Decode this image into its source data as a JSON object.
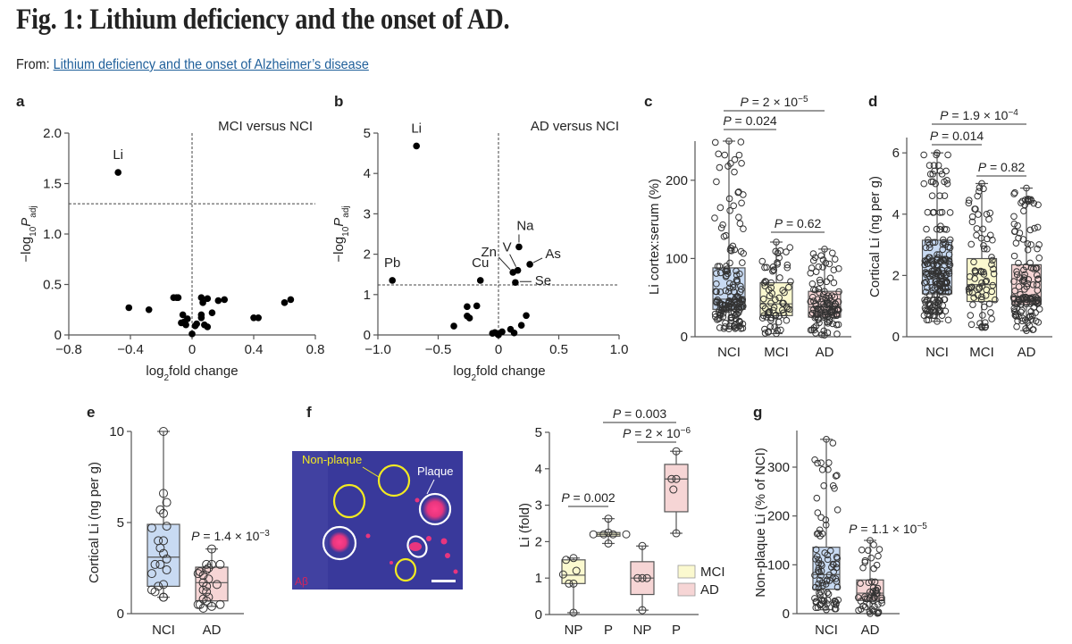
{
  "header": {
    "title": "Fig. 1: Lithium deficiency and the onset of AD.",
    "from_label": "From: ",
    "source_link": "Lithium deficiency and the onset of Alzheimer’s disease"
  },
  "colors": {
    "NCI": "#c8daf2",
    "MCI": "#fbf9cf",
    "AD": "#f6d5d5",
    "link": "#1f5f9a"
  },
  "panel_f_image": {
    "label_nonplaque": "Non-plaque",
    "label_plaque": "Plaque",
    "label_stain": "Aβ"
  },
  "chart_data": [
    {
      "id": "a",
      "panel": "a",
      "type": "scatter",
      "title": "MCI versus NCI",
      "xlabel": [
        {
          "t": "log"
        },
        {
          "t": "2",
          "sub": true
        },
        {
          "t": "fold change"
        }
      ],
      "ylabel": [
        {
          "t": "−log"
        },
        {
          "t": "10",
          "sub": true
        },
        {
          "t": "P",
          "i": true
        },
        {
          "t": "adj",
          "sub": true
        }
      ],
      "xlim": [
        -0.8,
        0.8
      ],
      "ylim": [
        0,
        2
      ],
      "xticks": [
        {
          "v": -0.8,
          "l": "−0.8"
        },
        {
          "v": -0.4,
          "l": "−0.4"
        },
        {
          "v": 0,
          "l": "0"
        },
        {
          "v": 0.4,
          "l": "0.4"
        },
        {
          "v": 0.8,
          "l": "0.8"
        }
      ],
      "yticks": [
        {
          "v": 0,
          "l": "0"
        },
        {
          "v": 0.5,
          "l": "0.5"
        },
        {
          "v": 1,
          "l": "1.0"
        },
        {
          "v": 1.5,
          "l": "1.5"
        },
        {
          "v": 2,
          "l": "2.0"
        }
      ],
      "threshold_y": 1.3,
      "threshold_x": 0,
      "points": [
        {
          "x": -0.48,
          "y": 1.61,
          "label": "Li"
        },
        {
          "x": -0.41,
          "y": 0.27
        },
        {
          "x": -0.28,
          "y": 0.25
        },
        {
          "x": -0.12,
          "y": 0.37
        },
        {
          "x": -0.1,
          "y": 0.37
        },
        {
          "x": -0.09,
          "y": 0.37
        },
        {
          "x": -0.06,
          "y": 0.2
        },
        {
          "x": -0.07,
          "y": 0.12
        },
        {
          "x": -0.04,
          "y": 0.1
        },
        {
          "x": -0.03,
          "y": 0.16
        },
        {
          "x": -0.05,
          "y": 0.13
        },
        {
          "x": 0.0,
          "y": 0.01
        },
        {
          "x": 0.02,
          "y": 0.09
        },
        {
          "x": 0.03,
          "y": 0.11
        },
        {
          "x": 0.06,
          "y": 0.37
        },
        {
          "x": 0.07,
          "y": 0.32
        },
        {
          "x": 0.1,
          "y": 0.36
        },
        {
          "x": 0.06,
          "y": 0.2
        },
        {
          "x": 0.06,
          "y": 0.17
        },
        {
          "x": 0.08,
          "y": 0.1
        },
        {
          "x": 0.1,
          "y": 0.08
        },
        {
          "x": 0.13,
          "y": 0.22
        },
        {
          "x": 0.17,
          "y": 0.34
        },
        {
          "x": 0.21,
          "y": 0.35
        },
        {
          "x": 0.4,
          "y": 0.17
        },
        {
          "x": 0.43,
          "y": 0.17
        },
        {
          "x": 0.6,
          "y": 0.32
        },
        {
          "x": 0.64,
          "y": 0.35
        }
      ]
    },
    {
      "id": "b",
      "panel": "b",
      "type": "scatter",
      "title": "AD versus NCI",
      "xlabel": [
        {
          "t": "log"
        },
        {
          "t": "2",
          "sub": true
        },
        {
          "t": "fold change"
        }
      ],
      "ylabel": [
        {
          "t": "−log"
        },
        {
          "t": "10",
          "sub": true
        },
        {
          "t": "P",
          "i": true
        },
        {
          "t": "adj",
          "sub": true
        }
      ],
      "xlim": [
        -1,
        1
      ],
      "ylim": [
        0,
        5
      ],
      "xticks": [
        {
          "v": -1,
          "l": "−1.0"
        },
        {
          "v": -0.5,
          "l": "−0.5"
        },
        {
          "v": 0,
          "l": "0"
        },
        {
          "v": 0.5,
          "l": "0.5"
        },
        {
          "v": 1,
          "l": "1.0"
        }
      ],
      "yticks": [
        {
          "v": 0,
          "l": "0"
        },
        {
          "v": 1,
          "l": "1"
        },
        {
          "v": 2,
          "l": "2"
        },
        {
          "v": 3,
          "l": "3"
        },
        {
          "v": 4,
          "l": "4"
        },
        {
          "v": 5,
          "l": "5"
        }
      ],
      "threshold_y": 1.24,
      "threshold_x": 0,
      "points": [
        {
          "x": -0.68,
          "y": 4.68,
          "label": "Li"
        },
        {
          "x": -0.88,
          "y": 1.35,
          "label": "Pb"
        },
        {
          "x": -0.15,
          "y": 1.35,
          "label": "Cu"
        },
        {
          "x": 0.17,
          "y": 2.18,
          "label": "Na"
        },
        {
          "x": 0.16,
          "y": 1.6,
          "label": "V"
        },
        {
          "x": 0.12,
          "y": 1.55,
          "label": "Zn"
        },
        {
          "x": 0.26,
          "y": 1.75,
          "label": "As"
        },
        {
          "x": 0.14,
          "y": 1.3,
          "label": "Se"
        },
        {
          "x": -0.26,
          "y": 0.7
        },
        {
          "x": -0.18,
          "y": 0.72
        },
        {
          "x": -0.26,
          "y": 0.47
        },
        {
          "x": -0.24,
          "y": 0.42
        },
        {
          "x": -0.37,
          "y": 0.22
        },
        {
          "x": -0.05,
          "y": 0.04
        },
        {
          "x": -0.03,
          "y": 0.06
        },
        {
          "x": -0.01,
          "y": 0.03
        },
        {
          "x": 0.0,
          "y": 0.0
        },
        {
          "x": 0.03,
          "y": 0.08
        },
        {
          "x": 0.1,
          "y": 0.14
        },
        {
          "x": 0.13,
          "y": 0.05
        },
        {
          "x": 0.19,
          "y": 0.24
        },
        {
          "x": 0.23,
          "y": 0.48
        }
      ]
    },
    {
      "id": "c",
      "panel": "c",
      "type": "box",
      "ylabel": [
        {
          "t": "Li cortex:serum (%)"
        }
      ],
      "ylim": [
        0,
        250
      ],
      "yticks": [
        {
          "v": 0,
          "l": "0"
        },
        {
          "v": 100,
          "l": "100"
        },
        {
          "v": 200,
          "l": "200"
        }
      ],
      "groups": [
        {
          "name": "NCI",
          "color": "NCI",
          "min": 10,
          "q1": 35,
          "median": 48,
          "q3": 88,
          "max": 250,
          "n": 160
        },
        {
          "name": "MCI",
          "color": "MCI",
          "min": 4,
          "q1": 27,
          "median": 42,
          "q3": 69,
          "max": 121,
          "n": 70
        },
        {
          "name": "AD",
          "color": "AD",
          "min": 2,
          "q1": 25,
          "median": 38,
          "q3": 58,
          "max": 112,
          "n": 110
        }
      ],
      "brackets": [
        {
          "from": 0,
          "to": 1,
          "label": {
            "p": "P",
            "text": " = 0.024"
          }
        },
        {
          "from": 0,
          "to": 2,
          "label": {
            "p": "P",
            "text": " = 2 × 10",
            "sup": "−5"
          }
        },
        {
          "from": 1,
          "to": 2,
          "label": {
            "p": "P",
            "text": " = 0.62"
          }
        }
      ]
    },
    {
      "id": "d",
      "panel": "d",
      "type": "box",
      "ylabel": [
        {
          "t": "Cortical Li (ng per g)"
        }
      ],
      "ylim": [
        0,
        6.5
      ],
      "yticks": [
        {
          "v": 0,
          "l": "0"
        },
        {
          "v": 2,
          "l": "2"
        },
        {
          "v": 4,
          "l": "4"
        },
        {
          "v": 6,
          "l": "6"
        }
      ],
      "groups": [
        {
          "name": "NCI",
          "color": "NCI",
          "min": 0.5,
          "q1": 1.4,
          "median": 2.15,
          "q3": 3.15,
          "max": 6.0,
          "n": 200
        },
        {
          "name": "MCI",
          "color": "MCI",
          "min": 0.3,
          "q1": 1.15,
          "median": 1.7,
          "q3": 2.55,
          "max": 5.0,
          "n": 75
        },
        {
          "name": "AD",
          "color": "AD",
          "min": 0.2,
          "q1": 1.05,
          "median": 1.3,
          "q3": 2.35,
          "max": 4.85,
          "n": 130
        }
      ],
      "brackets": [
        {
          "from": 0,
          "to": 1,
          "label": {
            "p": "P",
            "text": " = 0.014"
          }
        },
        {
          "from": 0,
          "to": 2,
          "label": {
            "p": "P",
            "text": " = 1.9 × 10",
            "sup": "−4"
          }
        },
        {
          "from": 1,
          "to": 2,
          "label": {
            "p": "P",
            "text": " = 0.82"
          }
        }
      ]
    },
    {
      "id": "e",
      "panel": "e",
      "type": "box",
      "ylabel": [
        {
          "t": "Cortical Li (ng per g)"
        }
      ],
      "ylim": [
        0,
        10
      ],
      "yticks": [
        {
          "v": 0,
          "l": "0"
        },
        {
          "v": 5,
          "l": "5"
        },
        {
          "v": 10,
          "l": "10"
        }
      ],
      "groups": [
        {
          "name": "NCI",
          "color": "NCI",
          "min": 0.9,
          "q1": 1.5,
          "median": 3.1,
          "q3": 4.9,
          "max": 10,
          "points": [
            10,
            6.6,
            6.1,
            5.7,
            5.5,
            4.8,
            4.7,
            4.0,
            4.0,
            3.6,
            3.3,
            3.0,
            2.7,
            2.7,
            2.4,
            2.2,
            1.6,
            1.5,
            1.3,
            1.2,
            0.9,
            0.9,
            0.9
          ]
        },
        {
          "name": "AD",
          "color": "AD",
          "min": 0.4,
          "q1": 0.7,
          "median": 1.7,
          "q3": 2.55,
          "max": 3.55,
          "points": [
            3.55,
            2.7,
            2.7,
            2.5,
            2.7,
            2.4,
            2.3,
            2.1,
            2.2,
            1.9,
            1.7,
            1.5,
            1.6,
            1.3,
            1.2,
            0.9,
            0.8,
            0.7,
            0.5,
            0.5,
            0.5,
            0.4,
            0.3
          ]
        }
      ],
      "annotation": {
        "p": "P",
        "text": " = 1.4 × 10",
        "sup": "−3"
      }
    },
    {
      "id": "f",
      "panel": "f",
      "type": "box",
      "ylabel": [
        {
          "t": "Li (fold)"
        }
      ],
      "ylim": [
        0,
        5
      ],
      "yticks": [
        {
          "v": 0,
          "l": "0"
        },
        {
          "v": 1,
          "l": "1"
        },
        {
          "v": 2,
          "l": "2"
        },
        {
          "v": 3,
          "l": "3"
        },
        {
          "v": 4,
          "l": "4"
        },
        {
          "v": 5,
          "l": "5"
        }
      ],
      "groups": [
        {
          "name": "NP",
          "color": "MCI",
          "min": 0.05,
          "q1": 0.85,
          "median": 1.08,
          "q3": 1.5,
          "max": 1.55,
          "points": [
            1.55,
            1.5,
            1.2,
            1.1,
            0.85,
            0.85,
            0.05
          ]
        },
        {
          "name": "P",
          "color": "MCI",
          "min": 1.95,
          "q1": 2.15,
          "median": 2.2,
          "q3": 2.25,
          "max": 2.63,
          "points": [
            2.63,
            2.25,
            2.2,
            2.2,
            2.2,
            2.2,
            1.95
          ]
        },
        {
          "name": "NP",
          "color": "AD",
          "min": 0.12,
          "q1": 0.55,
          "median": 1.0,
          "q3": 1.45,
          "max": 1.88,
          "points": [
            1.88,
            1.0,
            1.0,
            1.0,
            0.12
          ]
        },
        {
          "name": "P",
          "color": "AD",
          "min": 2.23,
          "q1": 2.82,
          "median": 3.72,
          "q3": 4.12,
          "max": 4.48,
          "points": [
            4.48,
            3.72,
            3.72,
            3.43,
            2.23
          ]
        }
      ],
      "brackets": [
        {
          "from": 0,
          "to": 1,
          "label": {
            "p": "P",
            "text": " = 0.002"
          }
        },
        {
          "from": 1,
          "to": 3,
          "label": {
            "p": "P",
            "text": " = 0.003"
          }
        },
        {
          "from": 2,
          "to": 3,
          "label": {
            "p": "P",
            "text": " = 2 × 10",
            "sup": "−6"
          }
        }
      ],
      "legend": [
        {
          "label": "MCI",
          "color": "MCI"
        },
        {
          "label": "AD",
          "color": "AD"
        }
      ]
    },
    {
      "id": "g",
      "panel": "g",
      "type": "box",
      "ylabel": [
        {
          "t": "Non-plaque Li (% of NCI)"
        }
      ],
      "ylim": [
        0,
        375
      ],
      "yticks": [
        {
          "v": 0,
          "l": "0"
        },
        {
          "v": 100,
          "l": "100"
        },
        {
          "v": 200,
          "l": "200"
        },
        {
          "v": 300,
          "l": "300"
        }
      ],
      "groups": [
        {
          "name": "NCI",
          "color": "NCI",
          "min": 8,
          "q1": 50,
          "median": 80,
          "q3": 136,
          "max": 357,
          "n": 90
        },
        {
          "name": "AD",
          "color": "AD",
          "min": 0,
          "q1": 27,
          "median": 42,
          "q3": 69,
          "max": 150,
          "n": 50
        }
      ],
      "annotation": {
        "p": "P",
        "text": " = 1.1 × 10",
        "sup": "−5"
      }
    }
  ]
}
